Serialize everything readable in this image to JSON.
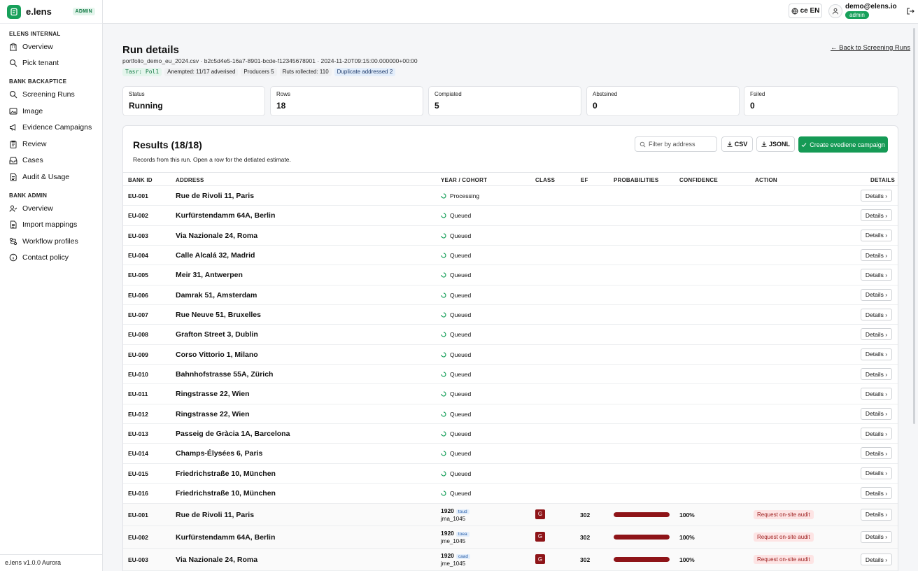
{
  "app": {
    "name": "e.lens",
    "badge": "ADMIN",
    "version": "e.lens v1.0.0 Aurora"
  },
  "sidebar": {
    "sections": [
      {
        "title": "ELENS INTERNAL",
        "items": [
          {
            "label": "Overview",
            "icon": "building-icon"
          },
          {
            "label": "Pick tenant",
            "icon": "search-icon"
          }
        ]
      },
      {
        "title": "BANK BACKAPTICE",
        "items": [
          {
            "label": "Screening Runs",
            "icon": "search-icon"
          },
          {
            "label": "Image",
            "icon": "image-icon"
          },
          {
            "label": "Evidence Campaigns",
            "icon": "megaphone-icon"
          },
          {
            "label": "Review",
            "icon": "clipboard-icon"
          },
          {
            "label": "Cases",
            "icon": "inbox-icon"
          },
          {
            "label": "Audit & Usage",
            "icon": "file-icon"
          }
        ]
      },
      {
        "title": "BANK ADMIN",
        "items": [
          {
            "label": "Overview",
            "icon": "users-icon"
          },
          {
            "label": "Import mappings",
            "icon": "file-icon"
          },
          {
            "label": "Workflow profiles",
            "icon": "workflow-icon"
          },
          {
            "label": "Contact policy",
            "icon": "info-icon"
          }
        ]
      }
    ]
  },
  "topbar": {
    "language": "ce EN",
    "user_email": "demo@elens.io",
    "user_role": "admin"
  },
  "page": {
    "title": "Run details",
    "back_link": "← Back to Screening Runs",
    "meta": "portfolio_demo_eu_2024.csv · b2c5d4e5-16a7-8901-bcde-f12345678901 · 2024-11-20T09:15:00.000000+00:00",
    "chips": [
      "Tasr: Pol1",
      "Anempted: 11/17 adverised",
      "Producers 5",
      "Ruts rollected: 110",
      "Duplicate addressed 2"
    ]
  },
  "stats": [
    {
      "label": "Status",
      "value": "Running"
    },
    {
      "label": "Rows",
      "value": "18"
    },
    {
      "label": "Compiated",
      "value": "5"
    },
    {
      "label": "Abstsined",
      "value": "0"
    },
    {
      "label": "Fsiled",
      "value": "0"
    }
  ],
  "results": {
    "title": "Results (18/18)",
    "subtitle": "Records from this run. Open a row for the detiated estimate.",
    "filter_placeholder": "Filter by address",
    "csv_label": "CSV",
    "jsonl_label": "JSONL",
    "create_label": "Create evediene campaign",
    "columns": [
      "BANK ID",
      "ADDRESS",
      "YEAR / COHORT",
      "CLASS",
      "EF",
      "PROBABILITIES",
      "CONFIDENCE",
      "ACTION",
      "DETAILS"
    ],
    "details_label": "Details ›",
    "pending_rows": [
      {
        "id": "EU-001",
        "address": "Rue de Rivoli 11, Paris",
        "status": "Processing"
      },
      {
        "id": "EU-002",
        "address": "Kurfürstendamm 64A, Berlin",
        "status": "Queued"
      },
      {
        "id": "EU-003",
        "address": "Via Nazionale 24, Roma",
        "status": "Queued"
      },
      {
        "id": "EU-004",
        "address": "Calle Alcalá 32, Madrid",
        "status": "Queued"
      },
      {
        "id": "EU-005",
        "address": "Meir 31, Antwerpen",
        "status": "Queued"
      },
      {
        "id": "EU-006",
        "address": "Damrak 51, Amsterdam",
        "status": "Queued"
      },
      {
        "id": "EU-007",
        "address": "Rue Neuve 51, Bruxelles",
        "status": "Queued"
      },
      {
        "id": "EU-008",
        "address": "Grafton Street 3, Dublin",
        "status": "Queued"
      },
      {
        "id": "EU-009",
        "address": "Corso Vittorio 1, Milano",
        "status": "Queued"
      },
      {
        "id": "EU-010",
        "address": "Bahnhofstrasse 55A, Zürich",
        "status": "Queued"
      },
      {
        "id": "EU-011",
        "address": "Ringstrasse 22, Wien",
        "status": "Queued"
      },
      {
        "id": "EU-012",
        "address": "Ringstrasse 22, Wien",
        "status": "Queued"
      },
      {
        "id": "EU-013",
        "address": "Passeig de Gràcia 1A, Barcelona",
        "status": "Queued"
      },
      {
        "id": "EU-014",
        "address": "Champs-Élysées 6, Paris",
        "status": "Queued"
      },
      {
        "id": "EU-015",
        "address": "Friedrichstraße 10, München",
        "status": "Queued"
      },
      {
        "id": "EU-016",
        "address": "Friedrichstraße 10, München",
        "status": "Queued"
      }
    ],
    "done_rows": [
      {
        "id": "EU-001",
        "address": "Rue de Rivoli 11, Paris",
        "year": "1920",
        "year_tag": "toud",
        "cohort": "jma_1045",
        "class": "G",
        "ef": "302",
        "probability": 1.0,
        "confidence": "100%",
        "action": "Request on-site audit"
      },
      {
        "id": "EU-002",
        "address": "Kurfürstendamm 64A, Berlin",
        "year": "1920",
        "year_tag": "toea",
        "cohort": "jme_1045",
        "class": "G",
        "ef": "302",
        "probability": 1.0,
        "confidence": "100%",
        "action": "Request on-site audit"
      },
      {
        "id": "EU-003",
        "address": "Via Nazionale 24, Roma",
        "year": "1920",
        "year_tag": "caad",
        "cohort": "jme_1045",
        "class": "G",
        "ef": "302",
        "probability": 1.0,
        "confidence": "100%",
        "action": "Request on-site audit"
      }
    ]
  },
  "colors": {
    "brand": "#17a05a",
    "class_g": "#8e1418",
    "action_bg": "#fde4e4"
  }
}
